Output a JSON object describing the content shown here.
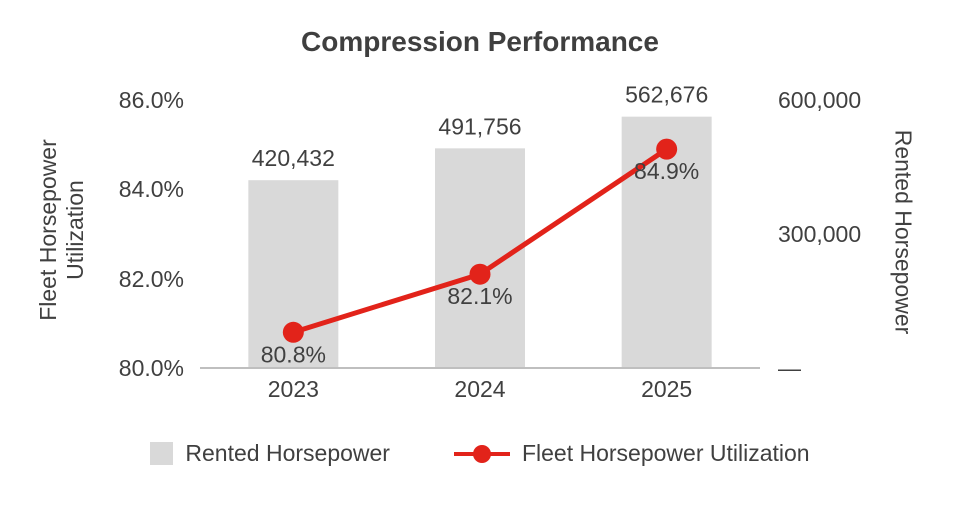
{
  "title": "Compression Performance",
  "colors": {
    "bar": "#d9d9d9",
    "line": "#e2231a",
    "text": "#404040",
    "title": "#3f3f3f",
    "axis_line": "#bfbfbf",
    "background": "#ffffff"
  },
  "chart_data": {
    "type": "bar",
    "subtype": "combo-bar-line-dual-axis",
    "categories": [
      "2023",
      "2024",
      "2025"
    ],
    "series": [
      {
        "name": "Rented Horsepower",
        "type": "bar",
        "axis": "right",
        "values": [
          420432,
          491756,
          562676
        ],
        "data_labels": [
          "420,432",
          "491,756",
          "562,676"
        ],
        "color": "#d9d9d9"
      },
      {
        "name": "Fleet Horsepower Utilization",
        "type": "line",
        "axis": "left",
        "values": [
          80.8,
          82.1,
          84.9
        ],
        "data_labels": [
          "80.8%",
          "82.1%",
          "84.9%"
        ],
        "color": "#e2231a"
      }
    ],
    "left_axis": {
      "label": "Fleet Horsepower Utilization",
      "min": 80,
      "max": 86,
      "ticks": [
        {
          "value": 80,
          "label": "80.0%"
        },
        {
          "value": 82,
          "label": "82.0%"
        },
        {
          "value": 84,
          "label": "84.0%"
        },
        {
          "value": 86,
          "label": "86.0%"
        }
      ]
    },
    "right_axis": {
      "label": "Rented Horsepower",
      "min": 0,
      "max": 600000,
      "ticks": [
        {
          "value": 0,
          "label": "—"
        },
        {
          "value": 300000,
          "label": "300,000"
        },
        {
          "value": 600000,
          "label": "600,000"
        }
      ]
    },
    "legend": [
      {
        "label": "Rented Horsepower",
        "marker": "bar",
        "color": "#d9d9d9"
      },
      {
        "label": "Fleet Horsepower Utilization",
        "marker": "line",
        "color": "#e2231a"
      }
    ],
    "grid": false,
    "legend_position": "bottom",
    "title": "Compression Performance"
  }
}
